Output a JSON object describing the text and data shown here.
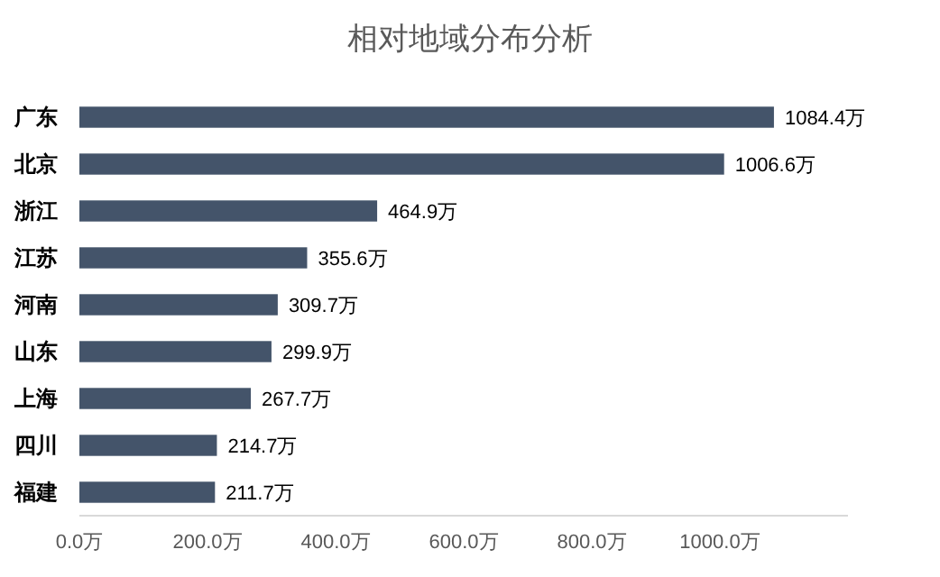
{
  "chart_data": {
    "type": "bar",
    "title": "相对地域分布分析",
    "orientation": "horizontal",
    "categories": [
      "广东",
      "北京",
      "浙江",
      "江苏",
      "河南",
      "山东",
      "上海",
      "四川",
      "福建"
    ],
    "values": [
      1084.4,
      1006.6,
      464.9,
      355.6,
      309.7,
      299.9,
      267.7,
      214.7,
      211.7
    ],
    "value_labels": [
      "1084.4万",
      "1006.6万",
      "464.9万",
      "355.6万",
      "309.7万",
      "299.9万",
      "267.7万",
      "214.7万",
      "211.7万"
    ],
    "color": "#44546a",
    "xlim": [
      0,
      1200
    ],
    "xticks": [
      {
        "value": 0,
        "label": "0.0万"
      },
      {
        "value": 200,
        "label": "200.0万"
      },
      {
        "value": 400,
        "label": "400.0万"
      },
      {
        "value": 600,
        "label": "600.0万"
      },
      {
        "value": 800,
        "label": "800.0万"
      },
      {
        "value": 1000,
        "label": "1000.0万"
      }
    ]
  }
}
